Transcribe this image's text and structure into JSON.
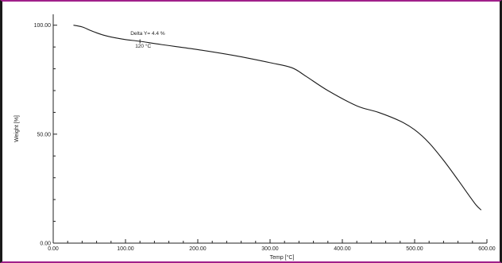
{
  "chart_data": {
    "type": "line",
    "title": "",
    "xlabel": "Temp [°C]",
    "ylabel": "Weight [%]",
    "xlim": [
      0,
      600
    ],
    "ylim": [
      0,
      105
    ],
    "x_ticks": [
      0,
      100,
      200,
      300,
      400,
      500,
      600
    ],
    "x_tick_labels": [
      "0.00",
      "100.00",
      "200.00",
      "300.00",
      "400.00",
      "500.00",
      "600.00"
    ],
    "y_ticks": [
      0,
      50,
      100
    ],
    "y_tick_labels": [
      "0.00",
      "50.00",
      "100.00"
    ],
    "grid": false,
    "series": [
      {
        "color": "#1a1a1a",
        "x": [
          28,
          40,
          50,
          60,
          70,
          80,
          100,
          120,
          150,
          200,
          250,
          300,
          330,
          350,
          380,
          420,
          450,
          480,
          500,
          520,
          540,
          560,
          575,
          585,
          592
        ],
        "y": [
          100,
          99.2,
          97.8,
          96.5,
          95.4,
          94.6,
          93.4,
          92.6,
          91.1,
          88.8,
          86.1,
          82.8,
          80.5,
          76.5,
          70,
          63,
          60,
          56,
          52,
          46,
          38,
          29,
          22,
          17.5,
          15.2
        ]
      }
    ],
    "annotations": [
      {
        "label": "Delta Y=  4.4 %",
        "x": 120,
        "y": 94.5
      },
      {
        "label": "120 °C",
        "x": 120,
        "y": 92.6
      }
    ]
  }
}
